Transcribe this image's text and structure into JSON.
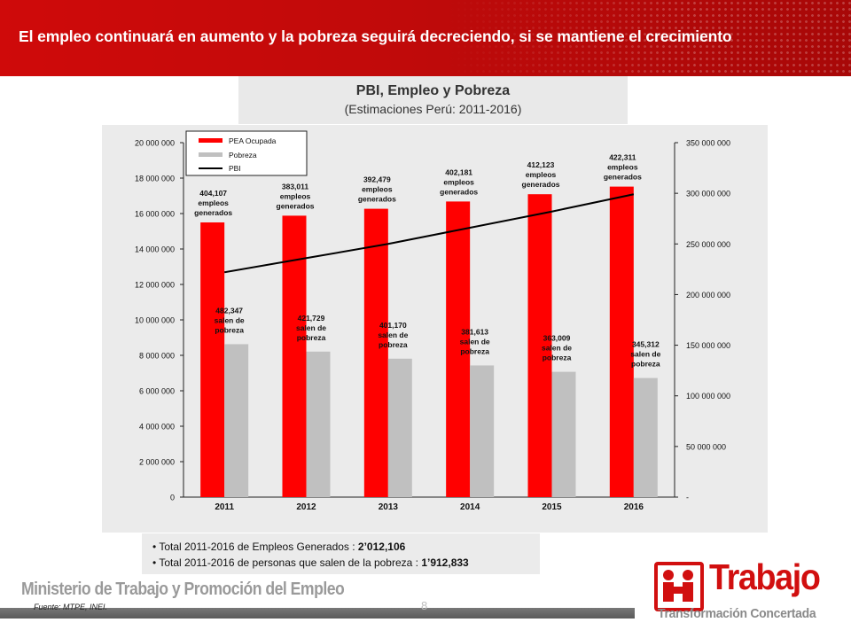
{
  "header": {
    "title": "El empleo continuará en aumento y la pobreza seguirá decreciendo, si se mantiene el crecimiento"
  },
  "chart_heading": {
    "title": "PBI, Empleo y Pobreza",
    "subtitle": "(Estimaciones Perú: 2011-2016)"
  },
  "chart_data": {
    "type": "bar",
    "categories": [
      "2011",
      "2012",
      "2013",
      "2014",
      "2015",
      "2016"
    ],
    "series": [
      {
        "name": "PEA Ocupada",
        "type": "bar",
        "axis": "left",
        "values": [
          15500000,
          15880000,
          16270000,
          16680000,
          17090000,
          17520000
        ],
        "labels": [
          [
            "404,107",
            "empleos",
            "generados"
          ],
          [
            "383,011",
            "empleos",
            "generados"
          ],
          [
            "392,479",
            "empleos",
            "generados"
          ],
          [
            "402,181",
            "empleos",
            "generados"
          ],
          [
            "412,123",
            "empleos",
            "generados"
          ],
          [
            "422,311",
            "empleos",
            "generados"
          ]
        ]
      },
      {
        "name": "Pobreza",
        "type": "bar",
        "axis": "left",
        "values": [
          8630000,
          8210000,
          7810000,
          7430000,
          7070000,
          6720000
        ],
        "labels": [
          [
            "482,347",
            "salen de",
            "pobreza"
          ],
          [
            "421,729",
            "salen de",
            "pobreza"
          ],
          [
            "401,170",
            "salen de",
            "pobreza"
          ],
          [
            "381,613",
            "salen de",
            "pobreza"
          ],
          [
            "363,009",
            "salen de",
            "pobreza"
          ],
          [
            "345,312",
            "salen de",
            "pobreza"
          ]
        ]
      },
      {
        "name": "PBI",
        "type": "line",
        "axis": "right",
        "values": [
          222000000,
          236000000,
          250000000,
          266000000,
          282000000,
          299000000
        ]
      }
    ],
    "ylim_left": [
      0,
      20000000
    ],
    "ylim_right": [
      0,
      350000000
    ],
    "yticks_left": [
      "0",
      "2 000 000",
      "4 000 000",
      "6 000 000",
      "8 000 000",
      "10 000 000",
      "12 000 000",
      "14 000 000",
      "16 000 000",
      "18 000 000",
      "20 000 000"
    ],
    "yticks_right": [
      "-",
      "50 000 000",
      "100 000 000",
      "150 000 000",
      "200 000 000",
      "250 000 000",
      "300 000 000",
      "350 000 000"
    ],
    "legend": "top-left",
    "grid": false,
    "colors": {
      "employment": "#ff0000",
      "poverty": "#c0c0c0",
      "gdp": "#000000"
    }
  },
  "summary": {
    "items": [
      {
        "text": "Total 2011-2016  de Empleos Generados : ",
        "value": "2’012,106"
      },
      {
        "text": "Total 2011-2016  de personas que salen de la pobreza : ",
        "value": "1’912,833"
      }
    ]
  },
  "footer": {
    "ministry": "Ministerio de Trabajo y Promoción del Empleo",
    "source": "Fuente: MTPE, INEI.",
    "page_number": "8"
  },
  "logo": {
    "word": "Trabajo",
    "subtitle": "Transformación Concertada",
    "color": "#d10f0f"
  }
}
